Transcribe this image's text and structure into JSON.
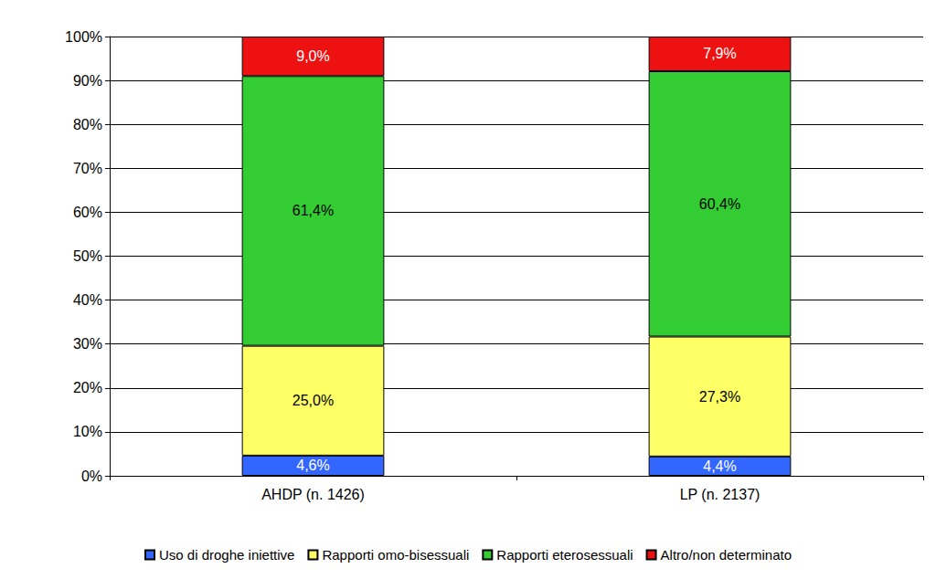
{
  "chart_data": {
    "type": "bar",
    "stacked": true,
    "categories": [
      "AHDP (n. 1426)",
      "LP (n. 2137)"
    ],
    "series": [
      {
        "name": "Uso di droghe iniettive",
        "color": "#3366ff",
        "values": [
          4.6,
          4.4
        ],
        "value_labels": [
          "4,6%",
          "4,4%"
        ]
      },
      {
        "name": "Rapporti omo-bisessuali",
        "color": "#ffff66",
        "values": [
          25.0,
          27.3
        ],
        "value_labels": [
          "25,0%",
          "27,3%"
        ]
      },
      {
        "name": "Rapporti eterosessuali",
        "color": "#33cc33",
        "values": [
          61.4,
          60.4
        ],
        "value_labels": [
          "61,4%",
          "60,4%"
        ]
      },
      {
        "name": "Altro/non determinato",
        "color": "#ee1111",
        "values": [
          9.0,
          7.9
        ],
        "value_labels": [
          "9,0%",
          "7,9%"
        ]
      }
    ],
    "ylim": [
      0,
      100
    ],
    "yticks": [
      {
        "value": 0,
        "label": "0%"
      },
      {
        "value": 10,
        "label": "10%"
      },
      {
        "value": 20,
        "label": "20%"
      },
      {
        "value": 30,
        "label": "30%"
      },
      {
        "value": 40,
        "label": "40%"
      },
      {
        "value": 50,
        "label": "50%"
      },
      {
        "value": 60,
        "label": "60%"
      },
      {
        "value": 70,
        "label": "70%"
      },
      {
        "value": 80,
        "label": "80%"
      },
      {
        "value": 90,
        "label": "90%"
      },
      {
        "value": 100,
        "label": "100%"
      }
    ],
    "grid": true,
    "legend": "bottom",
    "data_labels": true
  }
}
